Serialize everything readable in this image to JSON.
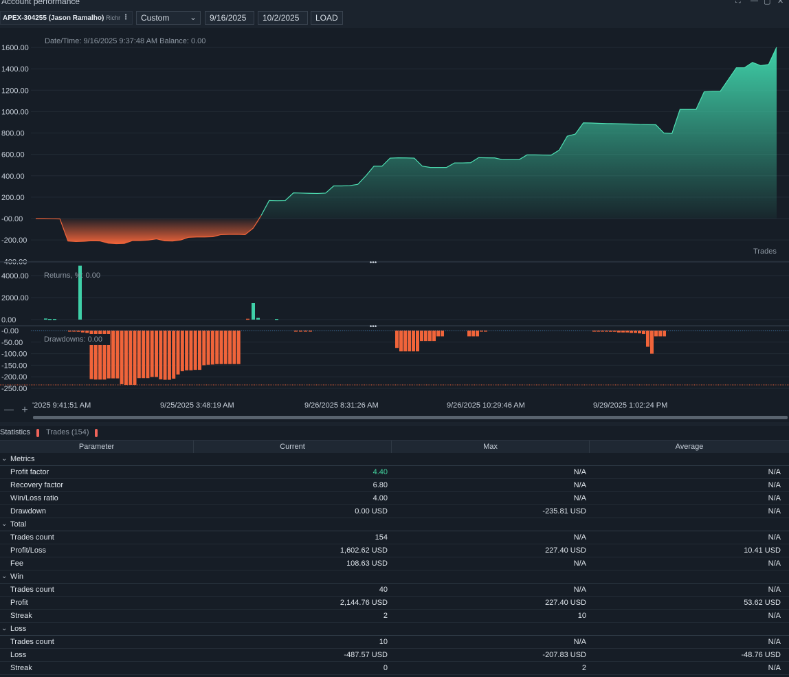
{
  "window": {
    "title": "Account performance",
    "controls": [
      "⛶",
      "—",
      "▢",
      "✕"
    ]
  },
  "toolbar": {
    "account_name": "APEX-304255 (Jason Ramalho)",
    "account_sub": "Richr",
    "account_menu": "⋮",
    "period": "Custom",
    "from_date": "9/16/2025",
    "to_date": "10/2/2025",
    "load_label": "LOAD"
  },
  "colors": {
    "accent_green": "#3fd0a8",
    "accent_red": "#f0643a",
    "background": "#161d26"
  },
  "balance_chart": {
    "info": "Date/Time: 9/16/2025 9:37:48 AM   Balance: 0.00",
    "corner_label": "Trades",
    "y_ticks": [
      "1600.00",
      "1400.00",
      "1200.00",
      "1000.00",
      "800.00",
      "600.00",
      "400.00",
      "200.00",
      "-00.00",
      "-200.00",
      "-400.00"
    ]
  },
  "returns_chart": {
    "info": "Returns, %: 0.00",
    "y_ticks": [
      "4000.00",
      "2000.00",
      "0.00"
    ]
  },
  "drawdowns_chart": {
    "info": "Drawdowns: 0.00",
    "y_ticks": [
      "-0.00",
      "-50.00",
      "-100.00",
      "-150.00",
      "-200.00",
      "-250.00"
    ]
  },
  "x_axis": {
    "labels": [
      "'2025 9:41:51 AM",
      "9/25/2025 3:48:19 AM",
      "9/26/2025 8:31:26 AM",
      "9/26/2025 10:29:46 AM",
      "9/29/2025 1:02:24 PM"
    ],
    "zoom_out": "—",
    "zoom_in": "+"
  },
  "chart_data": [
    {
      "type": "area",
      "title": "",
      "xlabel": "Trades",
      "ylabel": "",
      "ylim": [
        -400,
        1600
      ],
      "series": [
        {
          "values": [
            0,
            0,
            -2,
            -3,
            -210,
            -215,
            -212,
            -207,
            -209,
            -230,
            -235,
            -232,
            -206,
            -206,
            -201,
            -190,
            -208,
            -210,
            -200,
            -175,
            -172,
            -172,
            -170,
            -150,
            -148,
            -147,
            -150,
            -90,
            30,
            170,
            168,
            170,
            240,
            238,
            236,
            235,
            238,
            305,
            305,
            308,
            320,
            400,
            490,
            490,
            565,
            568,
            567,
            565,
            490,
            478,
            478,
            478,
            520,
            520,
            522,
            570,
            568,
            567,
            550,
            550,
            550,
            595,
            595,
            594,
            593,
            640,
            770,
            790,
            895,
            893,
            890,
            888,
            887,
            885,
            884,
            880,
            878,
            877,
            800,
            795,
            1020,
            1020,
            1020,
            1185,
            1190,
            1190,
            1300,
            1410,
            1410,
            1460,
            1430,
            1440,
            1602
          ]
        }
      ]
    },
    {
      "type": "bar",
      "title": "",
      "ylabel": "Returns, %",
      "ylim": [
        0,
        5000
      ],
      "series": [
        {
          "values": [
            100,
            60,
            60,
            0,
            4900,
            0,
            0,
            0,
            0,
            0,
            0,
            0,
            0,
            0,
            0,
            0,
            0,
            0,
            80,
            1500,
            150,
            0,
            0,
            60
          ]
        }
      ]
    },
    {
      "type": "bar",
      "title": "",
      "ylabel": "Drawdowns",
      "ylim": [
        -250,
        0
      ],
      "series": [
        {
          "values": [
            -3,
            -3,
            -5,
            -8,
            -10,
            -210,
            -212,
            -212,
            -212,
            -207,
            -207,
            -207,
            -232,
            -235,
            -235,
            -235,
            -206,
            -206,
            -206,
            -201,
            -201,
            -211,
            -213,
            -213,
            -208,
            -190,
            -176,
            -172,
            -172,
            -170,
            -170,
            -150,
            -148,
            -147,
            -145,
            -145,
            -145,
            -145,
            -145,
            -145,
            -3,
            -3,
            -3,
            -3,
            -75,
            -90,
            -90,
            -90,
            -90,
            -90,
            -45,
            -45,
            -45,
            -45,
            -25,
            -25,
            -25,
            -25,
            -25,
            -3,
            -3,
            -3,
            -3,
            -3,
            -3,
            -5,
            -5,
            -8,
            -8,
            -8,
            -10,
            -10,
            -12,
            -15,
            -70,
            -100,
            -25,
            -25,
            -25
          ]
        }
      ]
    }
  ],
  "tabs": {
    "statistics": "Statistics",
    "trades": "Trades (154)"
  },
  "table": {
    "headers": [
      "Parameter",
      "Current",
      "Max",
      "Average"
    ],
    "groups": [
      {
        "name": "Metrics",
        "rows": [
          {
            "p": "Profit factor",
            "c": "4.40",
            "m": "N/A",
            "a": "N/A"
          },
          {
            "p": "Recovery factor",
            "c": "6.80",
            "m": "N/A",
            "a": "N/A"
          },
          {
            "p": "Win/Loss ratio",
            "c": "4.00",
            "m": "N/A",
            "a": "N/A"
          },
          {
            "p": "Drawdown",
            "c": "0.00 USD",
            "m": "-235.81 USD",
            "a": "N/A"
          }
        ]
      },
      {
        "name": "Total",
        "rows": [
          {
            "p": "Trades count",
            "c": "154",
            "m": "N/A",
            "a": "N/A"
          },
          {
            "p": "Profit/Loss",
            "c": "1,602.62 USD",
            "m": "227.40 USD",
            "a": "10.41 USD"
          },
          {
            "p": "Fee",
            "c": "108.63 USD",
            "m": "N/A",
            "a": "N/A"
          }
        ]
      },
      {
        "name": "Win",
        "rows": [
          {
            "p": "Trades count",
            "c": "40",
            "m": "N/A",
            "a": "N/A"
          },
          {
            "p": "Profit",
            "c": "2,144.76 USD",
            "m": "227.40 USD",
            "a": "53.62 USD"
          },
          {
            "p": "Streak",
            "c": "2",
            "m": "10",
            "a": "N/A"
          }
        ]
      },
      {
        "name": "Loss",
        "rows": [
          {
            "p": "Trades count",
            "c": "10",
            "m": "N/A",
            "a": "N/A"
          },
          {
            "p": "Loss",
            "c": "-487.57 USD",
            "m": "-207.83 USD",
            "a": "-48.76 USD"
          },
          {
            "p": "Streak",
            "c": "0",
            "m": "2",
            "a": "N/A"
          }
        ]
      }
    ]
  }
}
